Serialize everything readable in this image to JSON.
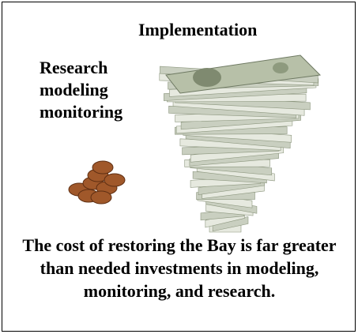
{
  "header": {
    "title": "Implementation"
  },
  "left_label": {
    "lines": [
      "Research",
      "modeling",
      "monitoring"
    ]
  },
  "caption": "The cost of restoring the Bay is far greater than needed investments in modeling, monitoring, and research."
}
